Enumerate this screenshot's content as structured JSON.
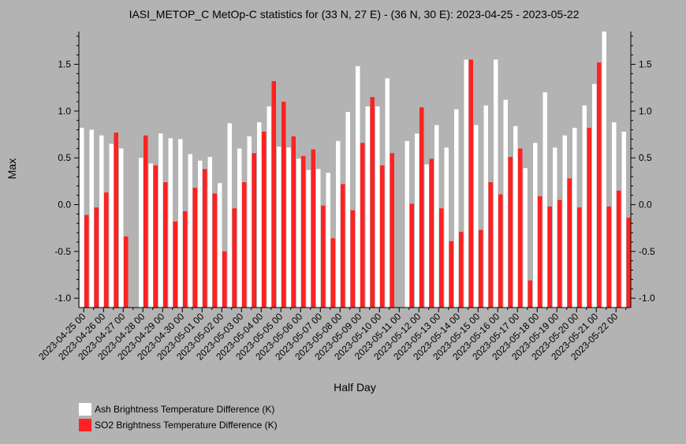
{
  "chart_data": {
    "type": "bar",
    "title": "IASI_METOP_C MetOp-C statistics for (33 N, 27 E) - (36 N, 30 E): 2023-04-25 - 2023-05-22",
    "xlabel": "Half Day",
    "ylabel": "Max",
    "ylim": [
      -1.1,
      1.85
    ],
    "yticks": [
      "-1.0",
      "-0.5",
      "0.0",
      "0.5",
      "1.0",
      "1.5"
    ],
    "xticks": [
      "2023-04-25 00",
      "2023-04-26 00",
      "2023-04-27 00",
      "2023-04-28 00",
      "2023-04-29 00",
      "2023-04-30 00",
      "2023-05-01 00",
      "2023-05-02 00",
      "2023-05-03 00",
      "2023-05-04 00",
      "2023-05-05 00",
      "2023-05-06 00",
      "2023-05-07 00",
      "2023-05-08 00",
      "2023-05-09 00",
      "2023-05-10 00",
      "2023-05-11 00",
      "2023-05-12 00",
      "2023-05-13 00",
      "2023-05-14 00",
      "2023-05-15 00",
      "2023-05-16 00",
      "2023-05-17 00",
      "2023-05-18 00",
      "2023-05-19 00",
      "2023-05-20 00",
      "2023-05-21 00",
      "2023-05-22 00"
    ],
    "categories": [
      "2023-04-25 00",
      "2023-04-25 12",
      "2023-04-26 00",
      "2023-04-26 12",
      "2023-04-27 00",
      "2023-04-27 12",
      "2023-04-28 00",
      "2023-04-28 12",
      "2023-04-29 00",
      "2023-04-29 12",
      "2023-04-30 00",
      "2023-04-30 12",
      "2023-05-01 00",
      "2023-05-01 12",
      "2023-05-02 00",
      "2023-05-02 12",
      "2023-05-03 00",
      "2023-05-03 12",
      "2023-05-04 00",
      "2023-05-04 12",
      "2023-05-05 00",
      "2023-05-05 12",
      "2023-05-06 00",
      "2023-05-06 12",
      "2023-05-07 00",
      "2023-05-07 12",
      "2023-05-08 00",
      "2023-05-08 12",
      "2023-05-09 00",
      "2023-05-09 12",
      "2023-05-10 00",
      "2023-05-10 12",
      "2023-05-11 00",
      "2023-05-11 12",
      "2023-05-12 00",
      "2023-05-12 12",
      "2023-05-13 00",
      "2023-05-13 12",
      "2023-05-14 00",
      "2023-05-14 12",
      "2023-05-15 00",
      "2023-05-15 12",
      "2023-05-16 00",
      "2023-05-16 12",
      "2023-05-17 00",
      "2023-05-17 12",
      "2023-05-18 00",
      "2023-05-18 12",
      "2023-05-19 00",
      "2023-05-19 12",
      "2023-05-20 00",
      "2023-05-20 12",
      "2023-05-21 00",
      "2023-05-21 12",
      "2023-05-22 00",
      "2023-05-22 12"
    ],
    "series": [
      {
        "name": "Ash Brightness Temperature Difference (K)",
        "color": "#ffffff",
        "values": [
          0.82,
          0.8,
          0.74,
          0.65,
          0.6,
          null,
          0.5,
          0.44,
          0.76,
          0.71,
          0.7,
          0.54,
          0.47,
          0.51,
          0.23,
          0.87,
          0.6,
          0.73,
          0.88,
          1.05,
          0.62,
          0.61,
          0.49,
          0.37,
          0.38,
          0.34,
          0.68,
          0.99,
          1.48,
          1.05,
          1.05,
          1.35,
          null,
          0.68,
          0.76,
          0.43,
          0.85,
          0.61,
          1.02,
          1.55,
          0.85,
          1.06,
          1.55,
          1.12,
          0.84,
          0.39,
          0.66,
          1.2,
          0.61,
          0.74,
          0.82,
          1.06,
          1.29,
          1.88,
          0.88,
          0.78
        ]
      },
      {
        "name": "SO2 Brightness Temperature Difference (K)",
        "color": "#ff2222",
        "values": [
          -0.11,
          -0.03,
          0.13,
          0.77,
          -0.34,
          null,
          0.74,
          0.42,
          0.24,
          -0.18,
          -0.07,
          0.18,
          0.38,
          0.12,
          -0.5,
          -0.04,
          0.24,
          0.55,
          0.78,
          1.32,
          1.1,
          0.73,
          0.52,
          0.59,
          -0.01,
          -0.36,
          0.22,
          -0.06,
          0.66,
          1.15,
          0.42,
          0.55,
          null,
          0.01,
          1.04,
          0.49,
          -0.04,
          -0.39,
          -0.29,
          1.55,
          -0.27,
          0.24,
          0.11,
          0.51,
          0.6,
          -0.81,
          0.09,
          -0.02,
          0.05,
          0.28,
          -0.03,
          0.82,
          1.52,
          -0.02,
          0.15,
          -0.14
        ]
      }
    ],
    "grid": false,
    "legend_position": "bottom-left"
  }
}
